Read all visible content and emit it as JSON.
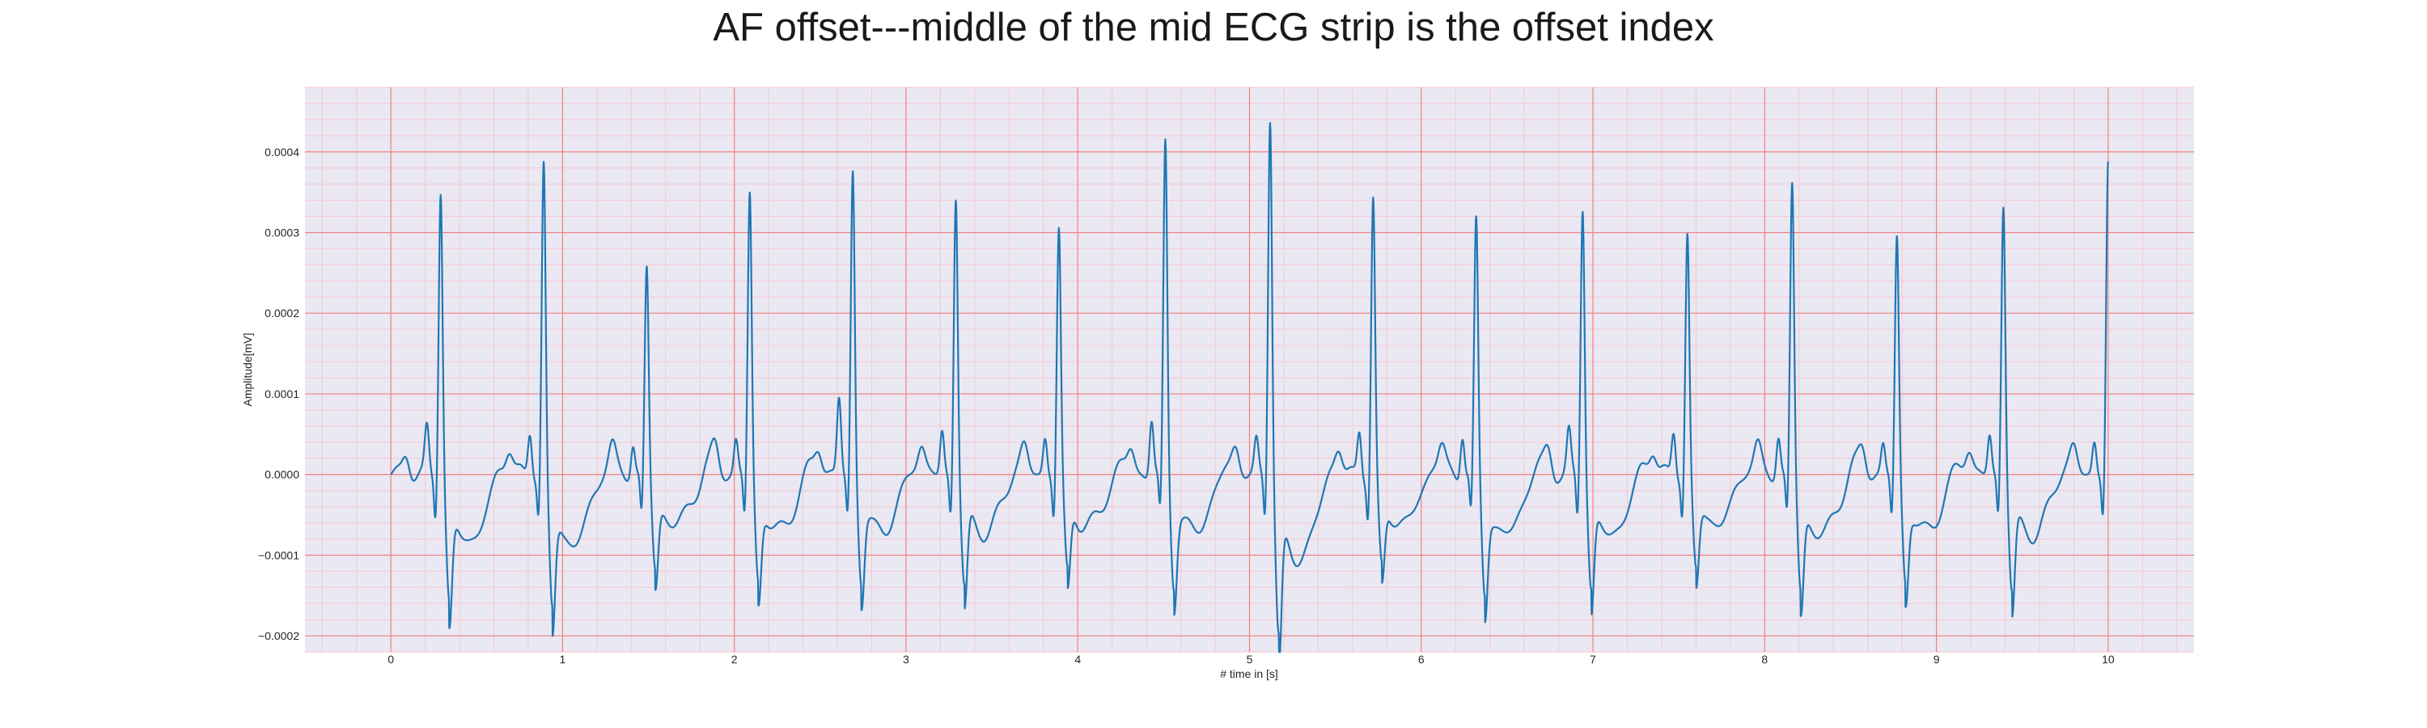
{
  "chart_data": {
    "type": "line",
    "title": "AF offset---middle of the mid ECG strip is the offset index",
    "xlabel": "# time in [s]",
    "ylabel": "Amplitude[mV]",
    "xlim": [
      -0.5,
      10.5
    ],
    "ylim": [
      -0.00022,
      0.00048
    ],
    "xticks": [
      0,
      1,
      2,
      3,
      4,
      5,
      6,
      7,
      8,
      9,
      10
    ],
    "xtick_labels": [
      "0",
      "1",
      "2",
      "3",
      "4",
      "5",
      "6",
      "7",
      "8",
      "9",
      "10"
    ],
    "yticks": [
      -0.0002,
      -0.0001,
      0.0,
      0.0001,
      0.0002,
      0.0003,
      0.0004
    ],
    "ytick_labels": [
      "−0.0002",
      "−0.0001",
      "0.0000",
      "0.0001",
      "0.0002",
      "0.0003",
      "0.0004"
    ],
    "grid": true,
    "minor_grid": true,
    "colors": {
      "line": "#1f77b4",
      "background": "#eae8f2",
      "major_grid": "#f08080",
      "minor_grid": "#f5c8cf"
    },
    "series": [
      {
        "beat_times": [
          0.29,
          0.89,
          1.49,
          2.09,
          2.69,
          3.29,
          3.89,
          4.51,
          5.12,
          5.72,
          6.32,
          6.94,
          7.55,
          8.16,
          8.77,
          9.39,
          10.0
        ],
        "r_peaks": [
          0.00036,
          0.00039,
          0.00026,
          0.000355,
          0.00038,
          0.00035,
          0.00031,
          0.000415,
          0.000455,
          0.000345,
          0.000315,
          0.00034,
          0.0003,
          0.000365,
          0.0003,
          0.00034,
          0.00039
        ],
        "s_troughs": [
          -0.00015,
          -0.000155,
          -0.00011,
          -0.000125,
          -0.000125,
          -0.00013,
          -0.000115,
          -0.000125,
          -0.00019,
          -0.00011,
          -0.000135,
          -0.000135,
          -0.00011,
          -0.000135,
          -0.000125,
          -0.000135,
          -5e-05
        ],
        "pre_peaks": [
          5.5e-05,
          5.5e-05,
          4e-05,
          4e-05,
          9.5e-05,
          5.5e-05,
          4.5e-05,
          7e-05,
          4e-05,
          5.5e-05,
          5.5e-05,
          5e-05,
          5.5e-05,
          5e-05,
          3.5e-05,
          5e-05,
          4e-05
        ]
      }
    ]
  }
}
